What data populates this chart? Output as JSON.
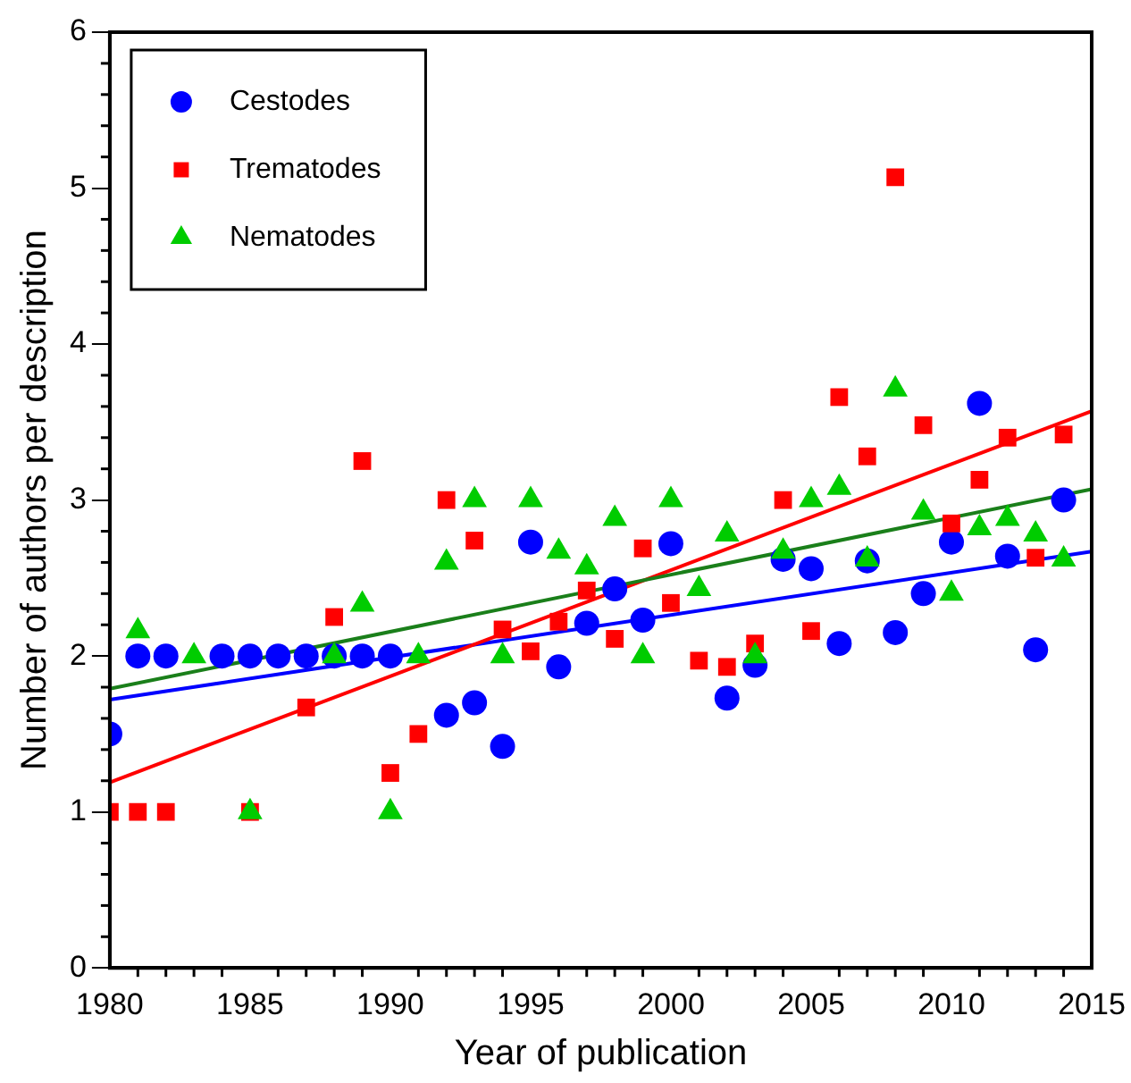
{
  "chart_data": {
    "type": "scatter",
    "xlabel": "Year of publication",
    "ylabel": "Number of authors per description",
    "xlim": [
      1980,
      2015
    ],
    "xticks": [
      1980,
      1985,
      1990,
      1995,
      2000,
      2005,
      2010,
      2015
    ],
    "ylim": [
      0,
      6
    ],
    "yticks": [
      0,
      1,
      2,
      3,
      4,
      5,
      6
    ],
    "legend": "top left",
    "grid": false,
    "series": [
      {
        "name": "Cestodes",
        "color": "#0000ff",
        "marker": "circle",
        "x": [
          1980,
          1981,
          1982,
          1984,
          1985,
          1986,
          1987,
          1988,
          1989,
          1990,
          1992,
          1993,
          1994,
          1995,
          1996,
          1997,
          1998,
          1999,
          2000,
          2002,
          2003,
          2004,
          2005,
          2006,
          2007,
          2008,
          2009,
          2010,
          2011,
          2012,
          2013,
          2014
        ],
        "values": [
          1.5,
          2,
          2,
          2,
          2,
          2,
          2,
          2,
          2,
          2,
          1.62,
          1.7,
          1.42,
          2.73,
          1.93,
          2.21,
          2.43,
          2.23,
          2.72,
          1.73,
          1.94,
          2.62,
          2.56,
          2.08,
          2.61,
          2.15,
          2.4,
          2.73,
          3.62,
          2.64,
          2.04,
          3.0
        ]
      },
      {
        "name": "Trematodes",
        "color": "#ff0000",
        "marker": "square",
        "x": [
          1980,
          1981,
          1982,
          1985,
          1987,
          1988,
          1989,
          1990,
          1991,
          1992,
          1993,
          1994,
          1995,
          1996,
          1997,
          1998,
          1999,
          2000,
          2001,
          2002,
          2003,
          2004,
          2005,
          2006,
          2007,
          2008,
          2009,
          2010,
          2011,
          2012,
          2013,
          2014
        ],
        "values": [
          1,
          1,
          1,
          1,
          1.67,
          2.25,
          3.25,
          1.25,
          1.5,
          3.0,
          2.74,
          2.17,
          2.03,
          2.22,
          2.42,
          2.11,
          2.69,
          2.34,
          1.97,
          1.93,
          2.08,
          3.0,
          2.16,
          3.66,
          3.28,
          5.07,
          3.48,
          2.85,
          3.13,
          3.4,
          2.63,
          3.42
        ]
      },
      {
        "name": "Nematodes",
        "color": "#00cc00",
        "marker": "triangle",
        "x": [
          1981,
          1983,
          1985,
          1988,
          1989,
          1990,
          1991,
          1992,
          1993,
          1994,
          1995,
          1996,
          1997,
          1998,
          1999,
          2000,
          2001,
          2002,
          2003,
          2004,
          2005,
          2006,
          2007,
          2008,
          2009,
          2010,
          2011,
          2012,
          2013,
          2014
        ],
        "values": [
          2.16,
          2.0,
          1.0,
          2.0,
          2.33,
          1.0,
          2.0,
          2.6,
          3.0,
          2.0,
          3.0,
          2.67,
          2.57,
          2.88,
          2.0,
          3.0,
          2.43,
          2.78,
          2.0,
          2.67,
          3.0,
          3.08,
          2.62,
          3.71,
          2.92,
          2.4,
          2.82,
          2.88,
          2.78,
          2.62
        ]
      },
      {
        "type": "line",
        "color": "#0000ff",
        "marker": "none",
        "x": [
          1980,
          2015
        ],
        "values": [
          1.72,
          2.67
        ]
      },
      {
        "type": "line",
        "color": "#ff0000",
        "marker": "none",
        "x": [
          1980,
          2015
        ],
        "values": [
          1.19,
          3.57
        ]
      },
      {
        "type": "line",
        "color": "#1a7f1a",
        "marker": "none",
        "x": [
          1980,
          2015
        ],
        "values": [
          1.79,
          3.07
        ]
      }
    ]
  }
}
